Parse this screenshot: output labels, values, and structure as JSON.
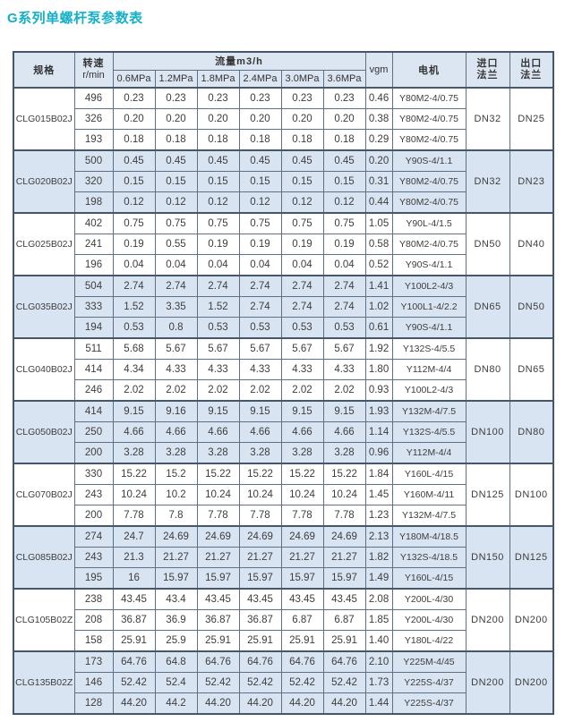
{
  "page": {
    "title": "G系列单螺杆泵参数表"
  },
  "colors": {
    "title_accent": "#14b0c7",
    "header_bg": "#dce6f2",
    "alt_row_bg": "#d9e4f2",
    "border": "#5e7184",
    "outer_border": "#44576b",
    "text": "#3d3d3d"
  },
  "table": {
    "headers": {
      "spec": "规格",
      "speed_line1": "转速",
      "speed_line2": "r/min",
      "flow_group": "流量m3/h",
      "pressures": [
        "0.6MPa",
        "1.2MPa",
        "1.8MPa",
        "2.4MPa",
        "3.0MPa",
        "3.6MPa"
      ],
      "vgm": "vgm",
      "motor": "电机",
      "inlet_line1": "进口",
      "inlet_line2": "法兰",
      "outlet_line1": "出口",
      "outlet_line2": "法兰"
    },
    "groups": [
      {
        "spec": "CLG015B02J",
        "inlet": "DN32",
        "outlet": "DN25",
        "rows": [
          {
            "speed": "496",
            "flows": [
              "0.23",
              "0.23",
              "0.23",
              "0.23",
              "0.23",
              "0.23"
            ],
            "vgm": "0.46",
            "motor": "Y80M2-4/0.75"
          },
          {
            "speed": "326",
            "flows": [
              "0.20",
              "0.20",
              "0.20",
              "0.20",
              "0.20",
              "0.20"
            ],
            "vgm": "0.38",
            "motor": "Y80M2-4/0.75"
          },
          {
            "speed": "193",
            "flows": [
              "0.18",
              "0.18",
              "0.18",
              "0.18",
              "0.18",
              "0.18"
            ],
            "vgm": "0.29",
            "motor": "Y80M2-4/0.75"
          }
        ]
      },
      {
        "spec": "CLG020B02J",
        "inlet": "DN32",
        "outlet": "DN23",
        "rows": [
          {
            "speed": "500",
            "flows": [
              "0.45",
              "0.45",
              "0.45",
              "0.45",
              "0.45",
              "0.45"
            ],
            "vgm": "0.20",
            "motor": "Y90S-4/1.1"
          },
          {
            "speed": "320",
            "flows": [
              "0.15",
              "0.15",
              "0.15",
              "0.15",
              "0.15",
              "0.15"
            ],
            "vgm": "0.31",
            "motor": "Y80M2-4/0.75"
          },
          {
            "speed": "198",
            "flows": [
              "0.12",
              "0.12",
              "0.12",
              "0.12",
              "0.12",
              "0.12"
            ],
            "vgm": "0.44",
            "motor": "Y80M2-4/0.75"
          }
        ]
      },
      {
        "spec": "CLG025B02J",
        "inlet": "DN50",
        "outlet": "DN40",
        "rows": [
          {
            "speed": "402",
            "flows": [
              "0.75",
              "0.75",
              "0.75",
              "0.75",
              "0.75",
              "0.75"
            ],
            "vgm": "1.05",
            "motor": "Y90L-4/1.5"
          },
          {
            "speed": "241",
            "flows": [
              "0.19",
              "0.55",
              "0.19",
              "0.19",
              "0.19",
              "0.19"
            ],
            "vgm": "0.58",
            "motor": "Y80M2-4/0.75"
          },
          {
            "speed": "196",
            "flows": [
              "0.04",
              "0.04",
              "0.04",
              "0.04",
              "0.04",
              "0.04"
            ],
            "vgm": "0.52",
            "motor": "Y90S-4/1.1"
          }
        ]
      },
      {
        "spec": "CLG035B02J",
        "inlet": "DN65",
        "outlet": "DN50",
        "rows": [
          {
            "speed": "504",
            "flows": [
              "2.74",
              "2.74",
              "2.74",
              "2.74",
              "2.74",
              "2.74"
            ],
            "vgm": "1.41",
            "motor": "Y100L2-4/3"
          },
          {
            "speed": "333",
            "flows": [
              "1.52",
              "3.35",
              "1.52",
              "2.74",
              "2.74",
              "2.74"
            ],
            "vgm": "1.02",
            "motor": "Y100L1-4/2.2"
          },
          {
            "speed": "194",
            "flows": [
              "0.53",
              "0.8",
              "0.53",
              "0.53",
              "0.53",
              "0.53"
            ],
            "vgm": "0.61",
            "motor": "Y90S-4/1.1"
          }
        ]
      },
      {
        "spec": "CLG040B02J",
        "inlet": "DN80",
        "outlet": "DN65",
        "rows": [
          {
            "speed": "511",
            "flows": [
              "5.68",
              "5.67",
              "5.67",
              "5.67",
              "5.67",
              "5.67"
            ],
            "vgm": "1.92",
            "motor": "Y132S-4/5.5"
          },
          {
            "speed": "414",
            "flows": [
              "4.34",
              "4.33",
              "4.33",
              "4.33",
              "4.33",
              "4.33"
            ],
            "vgm": "1.80",
            "motor": "Y112M-4/4"
          },
          {
            "speed": "246",
            "flows": [
              "2.02",
              "2.02",
              "2.02",
              "2.02",
              "2.02",
              "2.02"
            ],
            "vgm": "0.93",
            "motor": "Y100L2-4/3"
          }
        ]
      },
      {
        "spec": "CLG050B02J",
        "inlet": "DN100",
        "outlet": "DN80",
        "rows": [
          {
            "speed": "414",
            "flows": [
              "9.15",
              "9.16",
              "9.15",
              "9.15",
              "9.15",
              "9.15"
            ],
            "vgm": "1.93",
            "motor": "Y132M-4/7.5"
          },
          {
            "speed": "250",
            "flows": [
              "4.66",
              "4.66",
              "4.66",
              "4.66",
              "4.66",
              "4.66"
            ],
            "vgm": "1.14",
            "motor": "Y132S-4/5.5"
          },
          {
            "speed": "200",
            "flows": [
              "3.28",
              "3.28",
              "3.28",
              "3.28",
              "3.28",
              "3.28"
            ],
            "vgm": "0.96",
            "motor": "Y112M-4/4"
          }
        ]
      },
      {
        "spec": "CLG070B02J",
        "inlet": "DN125",
        "outlet": "DN100",
        "rows": [
          {
            "speed": "330",
            "flows": [
              "15.22",
              "15.2",
              "15.22",
              "15.22",
              "15.22",
              "15.22"
            ],
            "vgm": "1.84",
            "motor": "Y160L-4/15"
          },
          {
            "speed": "243",
            "flows": [
              "10.24",
              "10.2",
              "10.24",
              "10.24",
              "10.24",
              "10.24"
            ],
            "vgm": "1.45",
            "motor": "Y160M-4/11"
          },
          {
            "speed": "200",
            "flows": [
              "7.78",
              "7.8",
              "7.78",
              "7.78",
              "7.78",
              "7.78"
            ],
            "vgm": "1.23",
            "motor": "Y132M-4/7.5"
          }
        ]
      },
      {
        "spec": "CLG085B02J",
        "inlet": "DN150",
        "outlet": "DN125",
        "rows": [
          {
            "speed": "274",
            "flows": [
              "24.7",
              "24.69",
              "24.69",
              "24.69",
              "24.69",
              "24.69"
            ],
            "vgm": "2.13",
            "motor": "Y180M-4/18.5"
          },
          {
            "speed": "243",
            "flows": [
              "21.3",
              "21.27",
              "21.27",
              "21.27",
              "21.27",
              "21.27"
            ],
            "vgm": "1.82",
            "motor": "Y132S-4/18.5"
          },
          {
            "speed": "195",
            "flows": [
              "16",
              "15.97",
              "15.97",
              "15.97",
              "15.97",
              "15.97"
            ],
            "vgm": "1.49",
            "motor": "Y160L-4/15"
          }
        ]
      },
      {
        "spec": "CLG105B02Z",
        "inlet": "DN200",
        "outlet": "DN200",
        "rows": [
          {
            "speed": "238",
            "flows": [
              "43.45",
              "43.4",
              "43.45",
              "43.45",
              "43.45",
              "43.45"
            ],
            "vgm": "2.08",
            "motor": "Y200L-4/30"
          },
          {
            "speed": "208",
            "flows": [
              "36.87",
              "36.9",
              "36.87",
              "36.87",
              "6.87",
              "6.87"
            ],
            "vgm": "1.85",
            "motor": "Y200L-4/30"
          },
          {
            "speed": "158",
            "flows": [
              "25.91",
              "25.9",
              "25.91",
              "25.91",
              "25.91",
              "25.91"
            ],
            "vgm": "1.40",
            "motor": "Y180L-4/22"
          }
        ]
      },
      {
        "spec": "CLG135B02Z",
        "inlet": "DN200",
        "outlet": "DN200",
        "rows": [
          {
            "speed": "173",
            "flows": [
              "64.76",
              "64.8",
              "64.76",
              "64.76",
              "64.76",
              "64.76"
            ],
            "vgm": "2.10",
            "motor": "Y225M-4/45"
          },
          {
            "speed": "146",
            "flows": [
              "52.42",
              "52.4",
              "52.42",
              "52.42",
              "52.42",
              "52.42"
            ],
            "vgm": "1.73",
            "motor": "Y225S-4/37"
          },
          {
            "speed": "128",
            "flows": [
              "44.20",
              "44.2",
              "44.20",
              "44.20",
              "44.20",
              "44.20"
            ],
            "vgm": "1.44",
            "motor": "Y225S-4/37"
          }
        ]
      }
    ]
  }
}
